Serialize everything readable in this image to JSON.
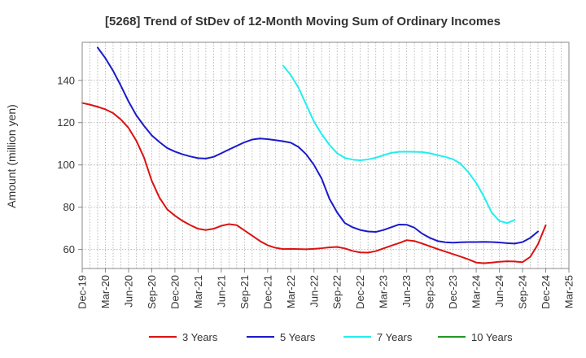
{
  "chart_data": {
    "type": "line",
    "title": "[5268]  Trend of StDev of 12-Month Moving Sum of Ordinary Incomes",
    "ylabel": "Amount (million yen)",
    "xlabel": "",
    "x_ticks": [
      "Dec-19",
      "Mar-20",
      "Jun-20",
      "Sep-20",
      "Dec-20",
      "Mar-21",
      "Jun-21",
      "Sep-21",
      "Dec-21",
      "Mar-22",
      "Jun-22",
      "Sep-22",
      "Dec-22",
      "Mar-23",
      "Jun-23",
      "Sep-23",
      "Dec-23",
      "Mar-24",
      "Jun-24",
      "Sep-24",
      "Dec-24",
      "Mar-25"
    ],
    "y_ticks": [
      60,
      80,
      100,
      120,
      140
    ],
    "ylim": [
      51,
      158
    ],
    "grid": true,
    "legend_position": "bottom",
    "series": [
      {
        "name": "3 Years",
        "color": "#dd1111",
        "start_index": 0,
        "values": [
          129.3,
          128.5,
          127.5,
          126.3,
          124.5,
          121.5,
          117.5,
          111.5,
          103.5,
          92.5,
          84.5,
          79,
          76,
          73.5,
          71.5,
          69.8,
          69.2,
          69.8,
          71.2,
          72,
          71.5,
          69,
          66.5,
          64,
          62,
          60.8,
          60.2,
          60.3,
          60.2,
          60.1,
          60.3,
          60.6,
          61,
          61.2,
          60.5,
          59.3,
          58.6,
          58.5,
          59.2,
          60.5,
          61.8,
          63,
          64.4,
          64,
          62.8,
          61.5,
          60.2,
          59,
          57.8,
          56.6,
          55.3,
          53.8,
          53.5,
          53.8,
          54.2,
          54.4,
          54.3,
          54,
          56.5,
          62.5,
          71.5
        ]
      },
      {
        "name": "5 Years",
        "color": "#1a1acc",
        "start_index": 2,
        "values": [
          155.5,
          150.5,
          144.5,
          137.5,
          130,
          123.5,
          118.5,
          114,
          110.8,
          108,
          106.3,
          105,
          104,
          103.2,
          103,
          103.8,
          105.5,
          107.3,
          109,
          110.7,
          112,
          112.5,
          112.2,
          111.7,
          111.2,
          110.5,
          108.5,
          105,
          100,
          93.5,
          84,
          77.5,
          72.5,
          70.5,
          69.2,
          68.5,
          68.3,
          69.2,
          70.5,
          71.8,
          71.7,
          70.3,
          67.5,
          65.5,
          64,
          63.4,
          63.2,
          63.4,
          63.5,
          63.5,
          63.6,
          63.5,
          63.3,
          63,
          62.8,
          63.5,
          65.5,
          68.5
        ]
      },
      {
        "name": "7 Years",
        "color": "#22eeee",
        "start_index": 26,
        "values": [
          147,
          142.5,
          136.5,
          128.5,
          120.5,
          114.5,
          109.5,
          105.5,
          103.3,
          102.5,
          102.2,
          102.6,
          103.4,
          104.6,
          105.7,
          106.2,
          106.3,
          106.2,
          106.1,
          105.5,
          104.6,
          103.8,
          102.7,
          100.5,
          96.5,
          91.5,
          85,
          77.5,
          73.5,
          72.5,
          74
        ]
      },
      {
        "name": "10 Years",
        "color": "#229922",
        "start_index": 0,
        "values": []
      }
    ]
  }
}
